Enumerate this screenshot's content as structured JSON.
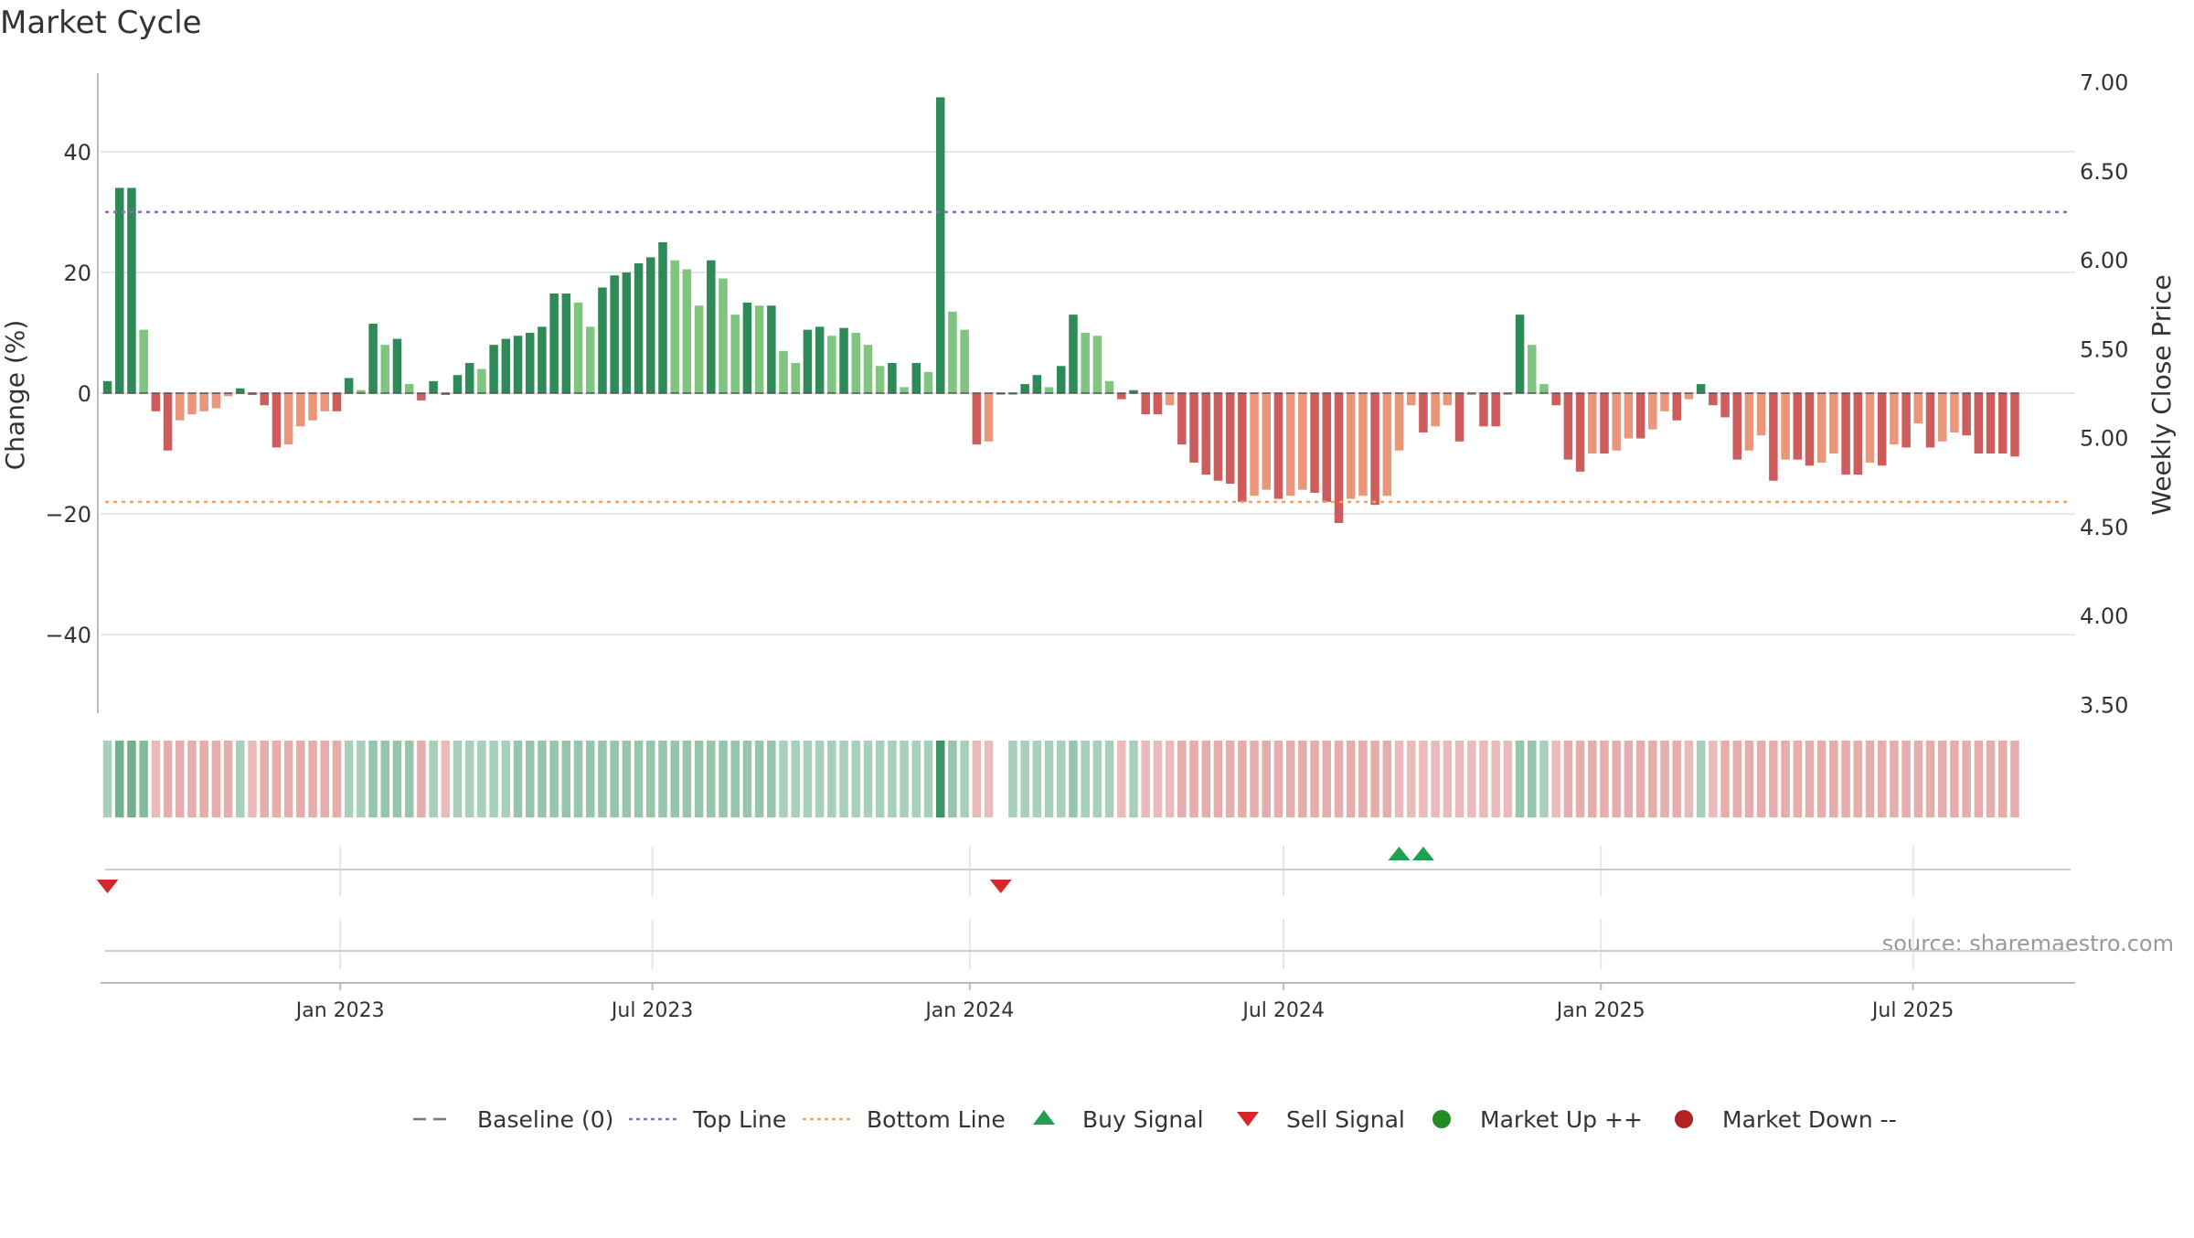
{
  "title": "Market Cycle",
  "source": "source: sharemaestro.com",
  "colors": {
    "up_strong": "#2e8b57",
    "up_light": "#7fc47f",
    "down_strong": "#cd5c5c",
    "down_light": "#e9967a",
    "top_line": "#9467bd",
    "bottom_line": "#f4a460",
    "baseline": "#777777",
    "buy": "#1fa050",
    "sell": "#d62728",
    "market_up": "#228b22",
    "market_down": "#b22222",
    "grid": "#e6e6e6",
    "axis": "#bbbbbb"
  },
  "legend": [
    {
      "label": "Baseline (0)",
      "kind": "dash",
      "color": "#777777"
    },
    {
      "label": "Top Line",
      "kind": "dot",
      "color": "#9467bd"
    },
    {
      "label": "Bottom Line",
      "kind": "dot",
      "color": "#f4a460"
    },
    {
      "label": "Buy Signal",
      "kind": "triangle-up",
      "color": "#1fa050"
    },
    {
      "label": "Sell Signal",
      "kind": "triangle-down",
      "color": "#d62728"
    },
    {
      "label": "Market Up ++",
      "kind": "circle",
      "color": "#228b22"
    },
    {
      "label": "Market Down --",
      "kind": "circle",
      "color": "#b22222"
    }
  ],
  "chart_data": {
    "type": "bar",
    "title": "Market Cycle",
    "ylabel": "Change (%)",
    "y2label": "Weekly Close Price",
    "ylim": [
      -53,
      53
    ],
    "y2lim": [
      3.45,
      7.05
    ],
    "yticks": [
      -40,
      -20,
      0,
      20,
      40
    ],
    "ytick_labels": [
      "−40",
      "−20",
      "0",
      "20",
      "40"
    ],
    "y2ticks": [
      3.5,
      4.0,
      4.5,
      5.0,
      5.5,
      6.0,
      6.5,
      7.0
    ],
    "y2tick_labels": [
      "3.50",
      "4.00",
      "4.50",
      "5.00",
      "5.50",
      "6.00",
      "6.50",
      "7.00"
    ],
    "x_start": "2022-08-15",
    "x_end": "2025-10-03",
    "xticks": [
      "2023-01-01",
      "2023-07-01",
      "2024-01-01",
      "2024-07-01",
      "2025-01-01",
      "2025-07-01"
    ],
    "xtick_labels": [
      "Jan 2023",
      "Jul 2023",
      "Jan 2024",
      "Jul 2024",
      "Jan 2025",
      "Jul 2025"
    ],
    "top_line": 30.0,
    "bottom_line": -18.0,
    "baseline": 0,
    "grid": true,
    "legend_position": "bottom",
    "series": [
      {
        "start": "2022-08-19",
        "step_days": 7,
        "values": [
          2.0,
          34.0,
          34.0,
          10.5,
          -3.0,
          -9.5,
          -4.5,
          -3.5,
          -3.0,
          -2.5,
          -0.5,
          0.8,
          -0.3,
          -2.0,
          -9.0,
          -8.5,
          -5.5,
          -4.5,
          -3.0,
          -3.0,
          2.5,
          0.5,
          11.5,
          8.0,
          9.0,
          1.5,
          -1.2,
          2.0,
          -0.3,
          3.0,
          5.0,
          4.0,
          8.0,
          9.0,
          9.5,
          10.0,
          11.0,
          16.5,
          16.5,
          15.0,
          11.0,
          17.5,
          19.5,
          20.0,
          21.5,
          22.5,
          25.0,
          22.0,
          20.5,
          14.5,
          22.0,
          19.0,
          13.0,
          15.0,
          14.5,
          14.5,
          7.0,
          5.0,
          10.5,
          11.0,
          9.5,
          10.8,
          10.0,
          8.0,
          4.5,
          5.0,
          1.0,
          5.0,
          3.5,
          49.0,
          13.5,
          10.5,
          -8.5,
          -8.0,
          0,
          0,
          1.5,
          3.0,
          1.0,
          4.5,
          13.0,
          10.0,
          9.5,
          2.0,
          -1.0,
          0.5,
          -3.5,
          -3.5,
          -2.0,
          -8.5,
          -11.5,
          -13.5,
          -14.5,
          -15.0,
          -18.0,
          -17.0,
          -16.0,
          -17.5,
          -17.0,
          -16.0,
          -16.5,
          -18.0,
          -21.5,
          -17.5,
          -17.0,
          -18.5,
          -17.0,
          -9.5,
          -2.0,
          -6.5,
          -5.5,
          -2.0,
          -8.0,
          -0.3,
          -5.5,
          -5.5,
          -0.3,
          13.0,
          8.0,
          1.5,
          -2.0,
          -11.0,
          -13.0,
          -10.0,
          -10.0,
          -9.5,
          -7.5,
          -7.5,
          -6.0,
          -3.0,
          -4.5,
          -1.0,
          1.5,
          -2.0,
          -4.0,
          -11.0,
          -9.5,
          -7.0,
          -14.5,
          -11.0,
          -11.0,
          -12.0,
          -11.5,
          -10.0,
          -13.5,
          -13.5,
          -11.5,
          -12.0,
          -8.5,
          -9.0,
          -5.0,
          -9.0,
          -8.0,
          -6.5,
          -7.0,
          -10.0,
          -10.0,
          -10.0,
          -10.5
        ]
      }
    ],
    "heat_strip": [
      3,
      6,
      6,
      5,
      3,
      4,
      4,
      4,
      4,
      4,
      4,
      3,
      3,
      4,
      4,
      4,
      4,
      4,
      4,
      4,
      3,
      3,
      4,
      4,
      4,
      4,
      4,
      3,
      3,
      3,
      3,
      3,
      3,
      3,
      4,
      4,
      4,
      4,
      4,
      4,
      4,
      4,
      4,
      4,
      4,
      4,
      4,
      4,
      4,
      4,
      4,
      4,
      4,
      4,
      4,
      4,
      3,
      3,
      3,
      3,
      3,
      3,
      3,
      3,
      3,
      3,
      3,
      3,
      3,
      9,
      4,
      3,
      3,
      3,
      null,
      3,
      3,
      3,
      3,
      3,
      4,
      3,
      3,
      3,
      3,
      3,
      3,
      3,
      3,
      4,
      4,
      4,
      4,
      4,
      4,
      4,
      4,
      4,
      4,
      4,
      4,
      4,
      4,
      4,
      4,
      4,
      4,
      3,
      3,
      3,
      3,
      3,
      3,
      3,
      3,
      3,
      3,
      4,
      4,
      3,
      3,
      4,
      4,
      4,
      4,
      4,
      4,
      4,
      4,
      4,
      4,
      3,
      3,
      3,
      4,
      4,
      4,
      4,
      4,
      4,
      4,
      4,
      4,
      4,
      4,
      4,
      4,
      4,
      4,
      4,
      4,
      4,
      4,
      4,
      4,
      4,
      4,
      4,
      4,
      4
    ],
    "buy_signals": [
      "2024-09-06",
      "2024-09-20"
    ],
    "sell_signals": [
      "2022-08-19",
      "2024-01-19"
    ]
  }
}
